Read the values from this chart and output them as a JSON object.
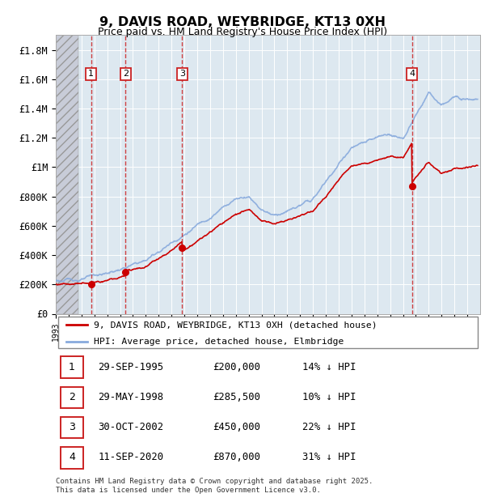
{
  "title": "9, DAVIS ROAD, WEYBRIDGE, KT13 0XH",
  "subtitle": "Price paid vs. HM Land Registry's House Price Index (HPI)",
  "ylabel_ticks": [
    "£0",
    "£200K",
    "£400K",
    "£600K",
    "£800K",
    "£1M",
    "£1.2M",
    "£1.4M",
    "£1.6M",
    "£1.8M"
  ],
  "ytick_values": [
    0,
    200000,
    400000,
    600000,
    800000,
    1000000,
    1200000,
    1400000,
    1600000,
    1800000
  ],
  "ylim": [
    0,
    1900000
  ],
  "xlim_start": 1993.0,
  "xlim_end": 2026.0,
  "sale_color": "#cc0000",
  "hpi_line_color": "#88aadd",
  "legend_sale_label": "9, DAVIS ROAD, WEYBRIDGE, KT13 0XH (detached house)",
  "legend_hpi_label": "HPI: Average price, detached house, Elmbridge",
  "transactions": [
    {
      "num": 1,
      "date": "29-SEP-1995",
      "price": 200000,
      "pct": "14%",
      "year": 1995.75
    },
    {
      "num": 2,
      "date": "29-MAY-1998",
      "price": 285500,
      "pct": "10%",
      "year": 1998.42
    },
    {
      "num": 3,
      "date": "30-OCT-2002",
      "price": 450000,
      "pct": "22%",
      "year": 2002.83
    },
    {
      "num": 4,
      "date": "11-SEP-2020",
      "price": 870000,
      "pct": "31%",
      "year": 2020.7
    }
  ],
  "footer": "Contains HM Land Registry data © Crown copyright and database right 2025.\nThis data is licensed under the Open Government Licence v3.0.",
  "bg_plot": "#dde8f0",
  "hatch_end": 1994.75
}
